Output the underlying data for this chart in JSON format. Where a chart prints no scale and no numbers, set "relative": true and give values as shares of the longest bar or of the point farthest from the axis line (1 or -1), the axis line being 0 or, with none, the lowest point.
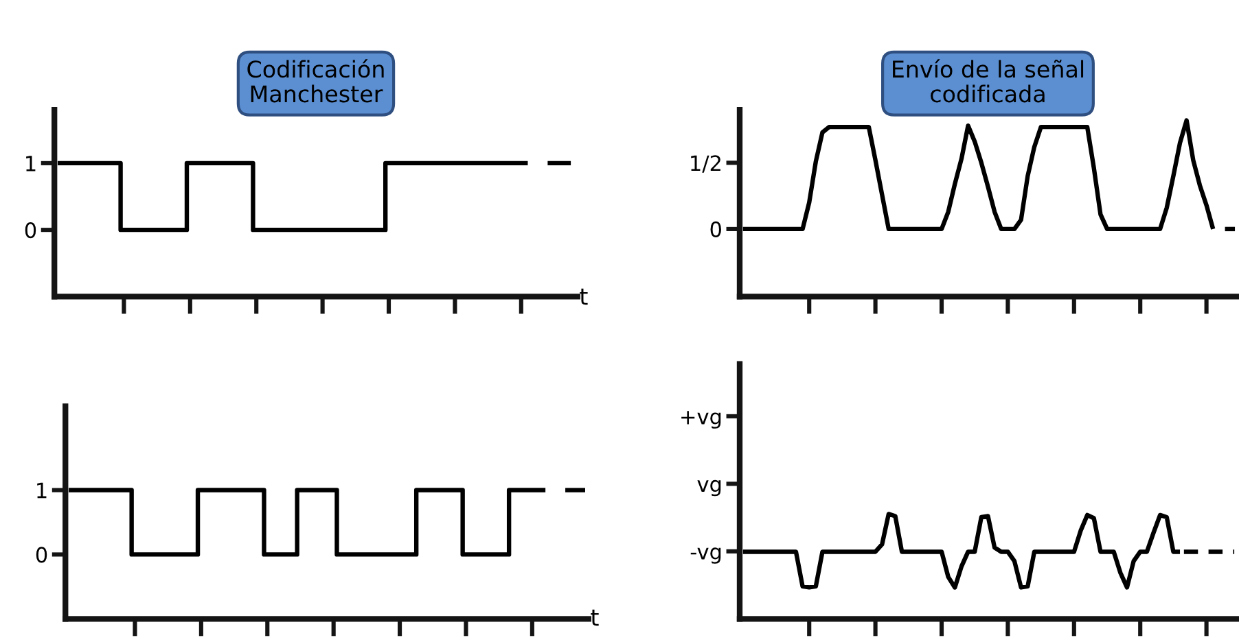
{
  "chart_data": [
    {
      "type": "step",
      "title": "Codificación\nManchester",
      "xlabel": "t",
      "tick_labels": "y",
      "categories": [
        null,
        null,
        null,
        null,
        null,
        null,
        null,
        null,
        null,
        null,
        null,
        null,
        null,
        null,
        null,
        null,
        null,
        null,
        null,
        null,
        null,
        null,
        null,
        null,
        null,
        null,
        null,
        null,
        null,
        null,
        null,
        null,
        null,
        null,
        null,
        null,
        null,
        null,
        null,
        null,
        null,
        null,
        null,
        null,
        null,
        null,
        null,
        null,
        null,
        null,
        null,
        null,
        null,
        null,
        null,
        null,
        null,
        null,
        null,
        null,
        null,
        null,
        null,
        null,
        null,
        null,
        null,
        null,
        null,
        null,
        null,
        null
      ],
      "ylim": [
        -1,
        1.8
      ],
      "yticks": [
        0,
        1
      ],
      "series": [
        {
          "color": "#000000",
          "line_style": "solid",
          "values": [
            1,
            1,
            1,
            1,
            1,
            1,
            1,
            1,
            1,
            1,
            0,
            0,
            0,
            0,
            0,
            0,
            0,
            0,
            0,
            0,
            1,
            1,
            1,
            1,
            1,
            1,
            1,
            1,
            1,
            1,
            0,
            0,
            0,
            0,
            0,
            0,
            0,
            0,
            0,
            0,
            0,
            0,
            0,
            0,
            0,
            0,
            0,
            0,
            0,
            0,
            1,
            1,
            1,
            1,
            1,
            1,
            1,
            1,
            1,
            1,
            1,
            1,
            1,
            1,
            1,
            1,
            1,
            1,
            1,
            1,
            1,
            1
          ]
        }
      ]
    },
    {
      "type": "line",
      "title": "Envío de la señal\ncodificada",
      "tick_labels": "y",
      "categories": [
        null,
        null,
        null,
        null,
        null,
        null,
        null,
        null,
        null,
        null,
        null,
        null,
        null,
        null,
        null,
        null,
        null,
        null,
        null,
        null,
        null,
        null,
        null,
        null,
        null,
        null,
        null,
        null,
        null,
        null,
        null,
        null,
        null,
        null,
        null,
        null,
        null,
        null,
        null,
        null,
        null,
        null,
        null,
        null,
        null,
        null,
        null,
        null,
        null,
        null,
        null,
        null,
        null,
        null,
        null,
        null,
        null,
        null,
        null,
        null,
        null,
        null,
        null,
        null,
        null,
        null,
        null,
        null,
        null,
        null,
        null,
        null
      ],
      "ylim": [
        -0.51,
        0.9
      ],
      "yticks": [
        0,
        {
          "value": 0.5,
          "label": "1/2"
        }
      ],
      "series": [
        {
          "color": "#000000",
          "line_style": "solid",
          "values": [
            0,
            0,
            0,
            0,
            0,
            0,
            0,
            0,
            0,
            0,
            0.2,
            0.51,
            0.73,
            0.77,
            0.77,
            0.77,
            0.77,
            0.77,
            0.77,
            0.77,
            0.52,
            0.26,
            0,
            0,
            0,
            0,
            0,
            0,
            0,
            0,
            0,
            0.13,
            0.34,
            0.53,
            0.78,
            0.66,
            0.5,
            0.32,
            0.13,
            0,
            0,
            0,
            0.07,
            0.4,
            0.62,
            0.77,
            0.77,
            0.77,
            0.77,
            0.77,
            0.77,
            0.77,
            0.77,
            0.46,
            0.11,
            0,
            0,
            0,
            0,
            0,
            0,
            0,
            0,
            0,
            0.16,
            0.4,
            0.65,
            0.82,
            0.52,
            0.33,
            0.18,
            0
          ]
        }
      ]
    },
    {
      "type": "step",
      "xlabel": "t",
      "tick_labels": "y",
      "categories": [
        null,
        null,
        null,
        null,
        null,
        null,
        null,
        null,
        null,
        null,
        null,
        null,
        null,
        null,
        null,
        null,
        null,
        null,
        null,
        null,
        null,
        null,
        null,
        null,
        null,
        null,
        null,
        null,
        null,
        null,
        null,
        null,
        null,
        null,
        null,
        null,
        null,
        null,
        null,
        null,
        null,
        null,
        null,
        null,
        null,
        null,
        null,
        null,
        null,
        null,
        null,
        null,
        null,
        null,
        null,
        null,
        null,
        null,
        null,
        null,
        null,
        null,
        null,
        null,
        null,
        null,
        null,
        null,
        null,
        null,
        null,
        null,
        null
      ],
      "ylim": [
        -1,
        2.3
      ],
      "yticks": [
        0,
        1
      ],
      "series": [
        {
          "color": "#000000",
          "line_style": "solid",
          "values": [
            1,
            1,
            1,
            1,
            1,
            1,
            1,
            1,
            1,
            1,
            0,
            0,
            0,
            0,
            0,
            0,
            0,
            0,
            0,
            0,
            1,
            1,
            1,
            1,
            1,
            1,
            1,
            1,
            1,
            1,
            0,
            0,
            0,
            0,
            0,
            1,
            1,
            1,
            1,
            1,
            1,
            0,
            0,
            0,
            0,
            0,
            0,
            0,
            0,
            0,
            0,
            0,
            0,
            1,
            1,
            1,
            1,
            1,
            1,
            1,
            0,
            0,
            0,
            0,
            0,
            0,
            0,
            1,
            1,
            1,
            1,
            1,
            1
          ]
        }
      ]
    },
    {
      "type": "line",
      "tick_labels": "y",
      "categories": [
        null,
        null,
        null,
        null,
        null,
        null,
        null,
        null,
        null,
        null,
        null,
        null,
        null,
        null,
        null,
        null,
        null,
        null,
        null,
        null,
        null,
        null,
        null,
        null,
        null,
        null,
        null,
        null,
        null,
        null,
        null,
        null,
        null,
        null,
        null,
        null,
        null,
        null,
        null,
        null,
        null,
        null,
        null,
        null,
        null,
        null,
        null,
        null,
        null,
        null,
        null,
        null,
        null,
        null,
        null,
        null,
        null,
        null,
        null,
        null,
        null,
        null,
        null,
        null,
        null,
        null,
        null
      ],
      "relative": true,
      "annotations": [
        "+vg",
        "vg",
        "-vg"
      ],
      "series": [
        {
          "color": "#000000",
          "line_style": "solid",
          "values": [
            0.64,
            0.64,
            0.64,
            0.64,
            0.64,
            0.64,
            0.64,
            0.64,
            0.64,
            0.31,
            0.3,
            0.31,
            0.64,
            0.64,
            0.64,
            0.64,
            0.64,
            0.64,
            0.64,
            0.64,
            0.64,
            0.71,
            1.0,
            0.98,
            0.64,
            0.64,
            0.64,
            0.64,
            0.64,
            0.64,
            0.64,
            0.4,
            0.3,
            0.5,
            0.64,
            0.64,
            0.97,
            0.98,
            0.68,
            0.64,
            0.64,
            0.55,
            0.3,
            0.31,
            0.64,
            0.64,
            0.64,
            0.64,
            0.64,
            0.64,
            0.64,
            0.84,
            0.99,
            0.96,
            0.64,
            0.64,
            0.64,
            0.44,
            0.3,
            0.55,
            0.64,
            0.64,
            0.82,
            0.99,
            0.97,
            0.64,
            0.64
          ]
        }
      ]
    }
  ]
}
